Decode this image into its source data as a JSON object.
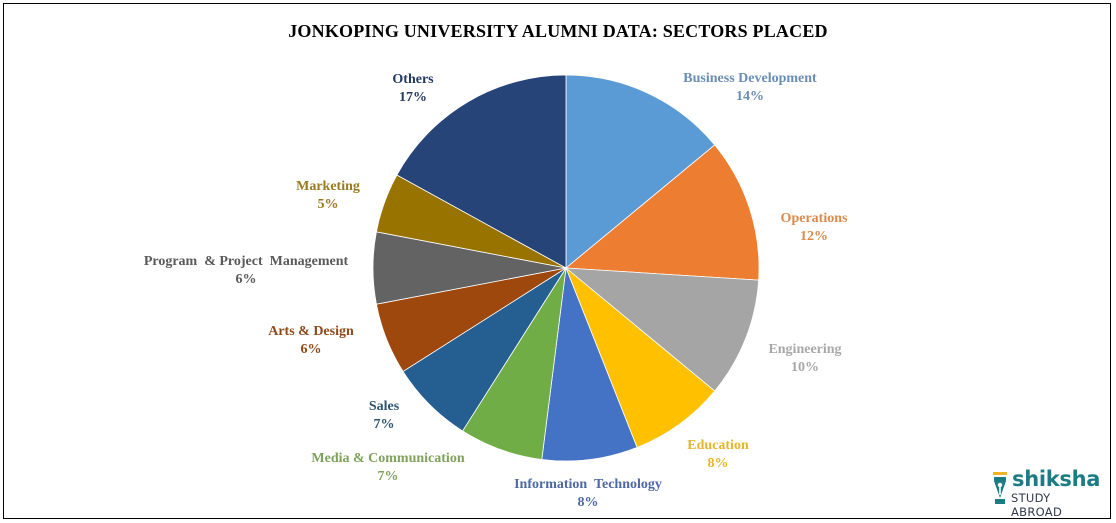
{
  "chart_data": {
    "type": "pie",
    "title": "JONKOPING UNIVERSITY ALUMNI DATA: SECTORS PLACED",
    "start_angle_deg": 0,
    "direction": "clockwise",
    "unit": "%",
    "categories": [
      "Business Development",
      "Operations",
      "Engineering",
      "Education",
      "Information Technology",
      "Media & Communication",
      "Sales",
      "Arts & Design",
      "Program & Project Management",
      "Marketing",
      "Others"
    ],
    "values": [
      14,
      12,
      10,
      8,
      8,
      7,
      7,
      6,
      6,
      5,
      17
    ],
    "colors": [
      "#5b9bd5",
      "#ed7d31",
      "#a5a5a5",
      "#ffc000",
      "#4472c4",
      "#70ad47",
      "#255e91",
      "#9e480e",
      "#636363",
      "#997300",
      "#264478"
    ],
    "label_colors": [
      "#6a8db5",
      "#d98a4c",
      "#a8a8a8",
      "#e8b52a",
      "#4f68a4",
      "#7ea25a",
      "#2f5575",
      "#8e4a1a",
      "#5a5a5a",
      "#9a7a1c",
      "#24395f"
    ],
    "labels": [
      {
        "name": "Business Development",
        "pct": "14%"
      },
      {
        "name": "Operations",
        "pct": "12%"
      },
      {
        "name": "Engineering",
        "pct": "10%"
      },
      {
        "name": "Education",
        "pct": "8%"
      },
      {
        "name": "Information  Technology",
        "pct": "8%"
      },
      {
        "name": "Media & Communication",
        "pct": "7%"
      },
      {
        "name": "Sales",
        "pct": "7%"
      },
      {
        "name": "Arts & Design",
        "pct": "6%"
      },
      {
        "name": "Program  & Project  Management",
        "pct": "6%"
      },
      {
        "name": "Marketing",
        "pct": "5%"
      },
      {
        "name": "Others",
        "pct": "17%"
      }
    ],
    "legend": "data labels outside slices"
  },
  "watermark": {
    "brand": "shiksha",
    "tagline": "STUDY ABROAD"
  }
}
